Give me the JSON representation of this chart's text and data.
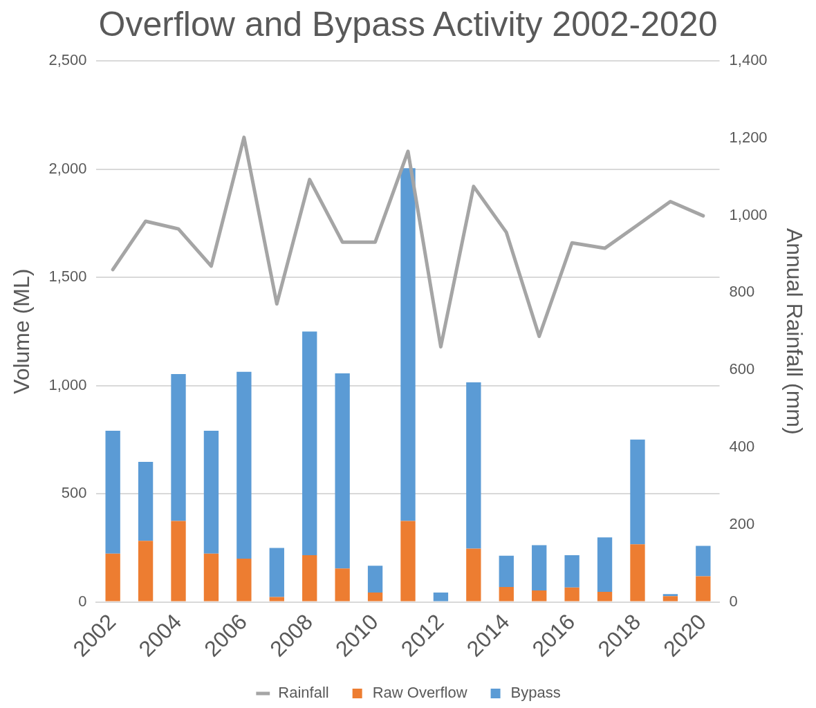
{
  "chart_data": {
    "type": "bar",
    "title": "Overflow and Bypass Activity 2002-2020",
    "ylabel": "Volume (ML)",
    "y2label": "Annual Rainfall (mm)",
    "categories": [
      "2002",
      null,
      "2004",
      null,
      "2006",
      null,
      "2008",
      null,
      "2010",
      null,
      "2012",
      null,
      "2014",
      null,
      "2016",
      null,
      "2018",
      null,
      "2020"
    ],
    "stacked": true,
    "series": [
      {
        "name": "Raw Overflow",
        "color": "#ed7d31",
        "values": [
          223,
          282,
          374,
          223,
          200,
          22,
          216,
          154,
          43,
          374,
          0,
          246,
          69,
          53,
          66,
          46,
          266,
          26,
          118
        ]
      },
      {
        "name": "Bypass",
        "color": "#5b9bd5",
        "values": [
          568,
          365,
          679,
          568,
          863,
          227,
          1033,
          902,
          124,
          1630,
          43,
          768,
          144,
          209,
          150,
          252,
          484,
          10,
          141
        ]
      },
      {
        "name": "Rainfall",
        "type": "line",
        "axis": "y2",
        "color": "#a5a5a5",
        "values": [
          860,
          985,
          965,
          869,
          1202,
          771,
          1093,
          931,
          931,
          1166,
          660,
          1075,
          956,
          687,
          929,
          915,
          975,
          1036,
          999
        ]
      }
    ],
    "ylim": [
      0,
      2500
    ],
    "yticks": [
      {
        "value": 0,
        "label": "0"
      },
      {
        "value": 500,
        "label": "500"
      },
      {
        "value": 1000,
        "label": "1,000"
      },
      {
        "value": 1500,
        "label": "1,500"
      },
      {
        "value": 2000,
        "label": "2,000"
      },
      {
        "value": 2500,
        "label": "2,500"
      }
    ],
    "y2lim": [
      0,
      1400
    ],
    "y2ticks": [
      {
        "value": 0,
        "label": "0"
      },
      {
        "value": 200,
        "label": "200"
      },
      {
        "value": 400,
        "label": "400"
      },
      {
        "value": 600,
        "label": "600"
      },
      {
        "value": 800,
        "label": "800"
      },
      {
        "value": 1000,
        "label": "1,000"
      },
      {
        "value": 1200,
        "label": "1,200"
      },
      {
        "value": 1400,
        "label": "1,400"
      }
    ],
    "grid": "y",
    "legend": "bottom",
    "marker": "none",
    "line_style": "solid"
  }
}
